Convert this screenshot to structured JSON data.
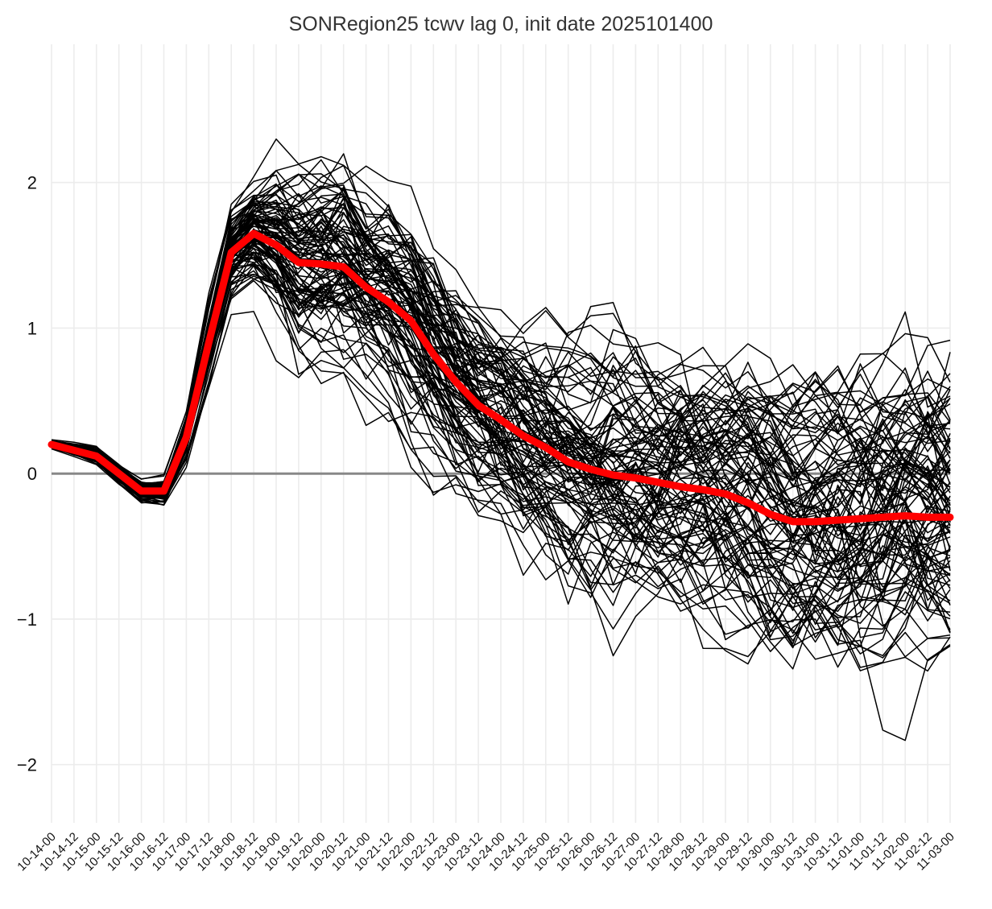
{
  "chart_data": {
    "type": "line",
    "title": "SONRegion25 tcwv lag 0, init date 2025101400",
    "xlabel": "",
    "ylabel": "",
    "categories": [
      "10-14-00",
      "10-14-12",
      "10-15-00",
      "10-15-12",
      "10-16-00",
      "10-16-12",
      "10-17-00",
      "10-17-12",
      "10-18-00",
      "10-18-12",
      "10-19-00",
      "10-19-12",
      "10-20-00",
      "10-20-12",
      "10-21-00",
      "10-21-12",
      "10-22-00",
      "10-22-12",
      "10-23-00",
      "10-23-12",
      "10-24-00",
      "10-24-12",
      "10-25-00",
      "10-25-12",
      "10-26-00",
      "10-26-12",
      "10-27-00",
      "10-27-12",
      "10-28-00",
      "10-28-12",
      "10-29-00",
      "10-29-12",
      "10-30-00",
      "10-30-12",
      "10-31-00",
      "10-31-12",
      "11-01-00",
      "11-01-12",
      "11-02-00",
      "11-02-12",
      "11-03-00"
    ],
    "ylim": [
      -2.4,
      2.95
    ],
    "yticks": [
      -2,
      -1,
      0,
      1,
      2
    ],
    "ytick_labels": [
      "−2",
      "−1",
      "0",
      "1",
      "2"
    ],
    "grid": true,
    "zero_line": 0,
    "colors": {
      "members": "#000000",
      "mean": "#ff0000",
      "zero_line": "#888888",
      "grid": "#ececec"
    },
    "ensemble_member_count": 100,
    "ensemble_spread": [
      0.02,
      0.03,
      0.04,
      0.04,
      0.05,
      0.06,
      0.1,
      0.15,
      0.18,
      0.22,
      0.3,
      0.4,
      0.42,
      0.45,
      0.45,
      0.45,
      0.48,
      0.48,
      0.45,
      0.42,
      0.45,
      0.48,
      0.5,
      0.52,
      0.52,
      0.55,
      0.55,
      0.55,
      0.56,
      0.58,
      0.6,
      0.62,
      0.62,
      0.65,
      0.65,
      0.65,
      0.65,
      0.65,
      0.65,
      0.65,
      0.65
    ],
    "series": [
      {
        "values": [
          0.2,
          0.16,
          0.12,
          0.0,
          -0.12,
          -0.12,
          0.25,
          0.9,
          1.52,
          1.65,
          1.57,
          1.45,
          1.44,
          1.42,
          1.28,
          1.18,
          1.05,
          0.82,
          0.63,
          0.47,
          0.37,
          0.26,
          0.18,
          0.08,
          0.03,
          -0.01,
          -0.03,
          -0.06,
          -0.09,
          -0.11,
          -0.14,
          -0.2,
          -0.28,
          -0.33,
          -0.33,
          -0.32,
          -0.31,
          -0.3,
          -0.29,
          -0.3,
          -0.3
        ]
      }
    ]
  }
}
